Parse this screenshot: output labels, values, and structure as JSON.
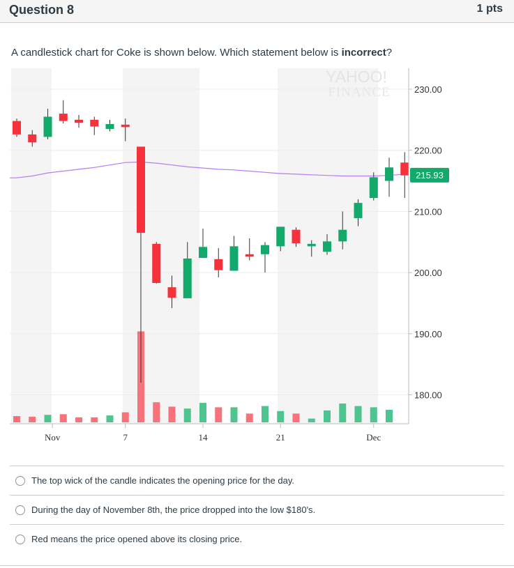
{
  "question": {
    "title": "Question 8",
    "points": "1 pts",
    "prompt_before": "A candlestick chart for Coke is shown below. Which statement below is ",
    "prompt_bold": "incorrect",
    "prompt_after": "?"
  },
  "chart_data": {
    "type": "candlestick",
    "watermark": [
      "YAHOO!",
      "FINANCE"
    ],
    "ylim": [
      175,
      230
    ],
    "ytick_labels": [
      "230.00",
      "220.00",
      "210.00",
      "200.00",
      "190.00",
      "180.00"
    ],
    "xtick_labels": [
      "Nov",
      "7",
      "14",
      "21",
      "Dec"
    ],
    "last_price_label": "215.93",
    "colors": {
      "up": "#13a96b",
      "down": "#f5323c",
      "volume_up": "#4ec48f",
      "volume_down": "#f7727a",
      "ma": "#b57cf5",
      "band": "#f4f4f4"
    },
    "candles": [
      {
        "o": 224.8,
        "h": 225.2,
        "l": 222.2,
        "c": 222.6
      },
      {
        "o": 222.6,
        "h": 223.3,
        "l": 220.6,
        "c": 221.3
      },
      {
        "o": 222.2,
        "h": 226.8,
        "l": 221.8,
        "c": 225.5
      },
      {
        "o": 226.0,
        "h": 228.2,
        "l": 224.4,
        "c": 224.8
      },
      {
        "o": 225.0,
        "h": 225.8,
        "l": 223.7,
        "c": 224.5
      },
      {
        "o": 225.0,
        "h": 225.5,
        "l": 222.5,
        "c": 223.9
      },
      {
        "o": 223.5,
        "h": 225.0,
        "l": 223.1,
        "c": 224.3
      },
      {
        "o": 224.2,
        "h": 225.2,
        "l": 221.5,
        "c": 223.8
      },
      {
        "o": 220.6,
        "h": 220.6,
        "l": 182.0,
        "c": 206.5
      },
      {
        "o": 204.7,
        "h": 205.0,
        "l": 198.2,
        "c": 198.3
      },
      {
        "o": 197.6,
        "h": 199.5,
        "l": 194.2,
        "c": 195.9
      },
      {
        "o": 195.8,
        "h": 205.0,
        "l": 195.8,
        "c": 202.3
      },
      {
        "o": 202.4,
        "h": 207.2,
        "l": 202.4,
        "c": 204.2
      },
      {
        "o": 202.2,
        "h": 204.0,
        "l": 199.2,
        "c": 200.4
      },
      {
        "o": 200.3,
        "h": 206.0,
        "l": 200.3,
        "c": 204.3
      },
      {
        "o": 203.0,
        "h": 205.6,
        "l": 202.0,
        "c": 202.6
      },
      {
        "o": 203.0,
        "h": 205.0,
        "l": 200.0,
        "c": 204.5
      },
      {
        "o": 204.3,
        "h": 207.5,
        "l": 203.5,
        "c": 207.5
      },
      {
        "o": 207.0,
        "h": 207.4,
        "l": 204.2,
        "c": 204.8
      },
      {
        "o": 204.3,
        "h": 205.3,
        "l": 202.6,
        "c": 204.7
      },
      {
        "o": 203.4,
        "h": 206.3,
        "l": 202.9,
        "c": 205.1
      },
      {
        "o": 205.1,
        "h": 210.0,
        "l": 203.8,
        "c": 207.0
      },
      {
        "o": 208.9,
        "h": 212.0,
        "l": 207.6,
        "c": 211.4
      },
      {
        "o": 212.2,
        "h": 216.4,
        "l": 211.8,
        "c": 215.6
      },
      {
        "o": 215.0,
        "h": 218.8,
        "l": 212.4,
        "c": 217.2
      },
      {
        "o": 218.0,
        "h": 219.7,
        "l": 212.2,
        "c": 215.9
      }
    ],
    "volumes": [
      {
        "v": 1.0,
        "dir": "down"
      },
      {
        "v": 0.9,
        "dir": "down"
      },
      {
        "v": 1.2,
        "dir": "up"
      },
      {
        "v": 1.3,
        "dir": "down"
      },
      {
        "v": 0.8,
        "dir": "down"
      },
      {
        "v": 0.8,
        "dir": "down"
      },
      {
        "v": 1.1,
        "dir": "up"
      },
      {
        "v": 1.6,
        "dir": "down"
      },
      {
        "v": 14.5,
        "dir": "down"
      },
      {
        "v": 3.2,
        "dir": "down"
      },
      {
        "v": 2.5,
        "dir": "down"
      },
      {
        "v": 2.2,
        "dir": "up"
      },
      {
        "v": 3.1,
        "dir": "up"
      },
      {
        "v": 2.4,
        "dir": "down"
      },
      {
        "v": 2.4,
        "dir": "up"
      },
      {
        "v": 1.4,
        "dir": "down"
      },
      {
        "v": 2.6,
        "dir": "up"
      },
      {
        "v": 1.8,
        "dir": "up"
      },
      {
        "v": 1.4,
        "dir": "down"
      },
      {
        "v": 0.6,
        "dir": "up"
      },
      {
        "v": 1.9,
        "dir": "up"
      },
      {
        "v": 3.0,
        "dir": "up"
      },
      {
        "v": 2.6,
        "dir": "up"
      },
      {
        "v": 2.4,
        "dir": "up"
      },
      {
        "v": 2.0,
        "dir": "up"
      },
      {
        "v": 0,
        "dir": "up"
      }
    ],
    "moving_average": [
      215.5,
      215.8,
      216.3,
      216.6,
      216.9,
      217.2,
      217.6,
      218.0,
      218.1,
      217.9,
      217.6,
      217.3,
      217.1,
      216.9,
      216.8,
      216.6,
      216.4,
      216.2,
      216.1,
      216.0,
      215.9,
      215.8,
      215.8,
      215.8,
      215.9,
      216.1
    ]
  },
  "answers": [
    {
      "text": "The top wick of the candle indicates the opening price for the day."
    },
    {
      "text": "During the day of November 8th, the price dropped into the low $180's."
    },
    {
      "text": "Red means the price opened above its closing price."
    }
  ]
}
